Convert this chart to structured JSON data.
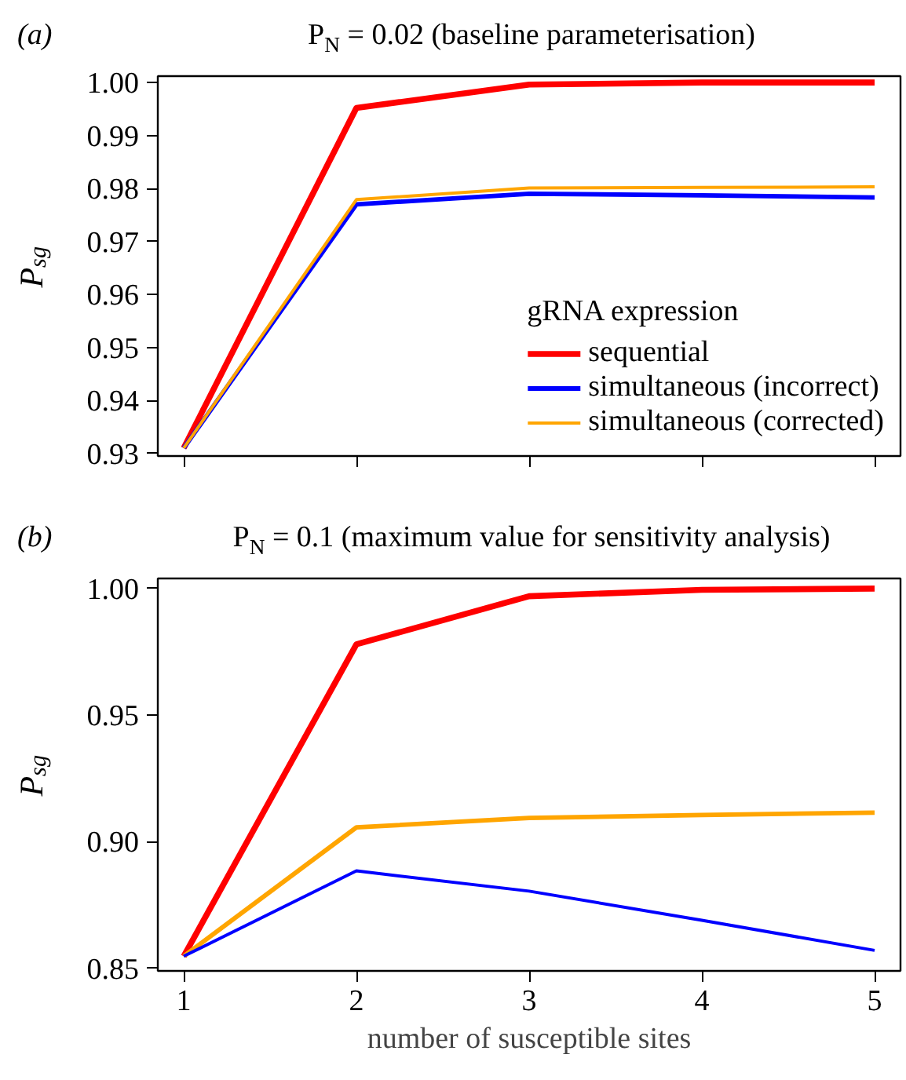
{
  "chart_data": [
    {
      "type": "line",
      "title": "P$_{N}$ = 0.02 (baseline parameterisation)",
      "annotations": [
        "(a)"
      ],
      "ylabel": "P$_{sg}$",
      "x": [
        1,
        2,
        3,
        4,
        5
      ],
      "xlim": [
        0.85,
        5.15
      ],
      "xticks": [
        1,
        2,
        3,
        4,
        5
      ],
      "ylim": [
        0.9295,
        1.0012
      ],
      "yticks": [
        {
          "value": 0.93,
          "label": "0.93"
        },
        {
          "value": 0.94,
          "label": "0.94"
        },
        {
          "value": 0.95,
          "label": "0.95"
        },
        {
          "value": 0.96,
          "label": "0.96"
        },
        {
          "value": 0.97,
          "label": "0.97"
        },
        {
          "value": 0.98,
          "label": "0.98"
        },
        {
          "value": 0.99,
          "label": "0.99"
        },
        {
          "value": 1.0,
          "label": "1.00"
        }
      ],
      "tick_labels": "y",
      "grid": false,
      "legend": "bottom right",
      "legend_title": "gRNA expression",
      "line_style": "solid",
      "series": [
        {
          "name": "sequential",
          "color": "#ff0000",
          "values": [
            0.931,
            0.9952,
            0.9996,
            1.0,
            1.0
          ]
        },
        {
          "name": "simultaneous (incorrect)",
          "color": "#0000ff",
          "values": [
            0.931,
            0.977,
            0.979,
            0.9787,
            0.9783
          ]
        },
        {
          "name": "simultaneous (corrected)",
          "color": "#ffa500",
          "values": [
            0.931,
            0.9779,
            0.9801,
            0.9802,
            0.9803
          ]
        }
      ]
    },
    {
      "type": "line",
      "title": "P$_{N}$ = 0.1 (maximum value for sensitivity analysis)",
      "annotations": [
        "(b)"
      ],
      "ylabel": "P$_{sg}$",
      "xlabel": "number of susceptible sites",
      "x": [
        1,
        2,
        3,
        4,
        5
      ],
      "xlim": [
        0.85,
        5.15
      ],
      "xticks": [
        1,
        2,
        3,
        4,
        5
      ],
      "ylim": [
        0.849,
        1.004
      ],
      "yticks": [
        {
          "value": 0.85,
          "label": "0.85"
        },
        {
          "value": 0.9,
          "label": "0.90"
        },
        {
          "value": 0.95,
          "label": "0.95"
        },
        {
          "value": 1.0,
          "label": "1.00"
        }
      ],
      "grid": false,
      "line_style": "solid",
      "series": [
        {
          "color": "#ff0000",
          "values": [
            0.8548,
            0.978,
            0.997,
            0.9995,
            1.0
          ]
        },
        {
          "color": "#ffa500",
          "values": [
            0.8548,
            0.9057,
            0.9094,
            0.9106,
            0.9115
          ]
        },
        {
          "color": "#0000ff",
          "values": [
            0.8548,
            0.8885,
            0.8805,
            0.869,
            0.8571
          ]
        }
      ]
    }
  ]
}
